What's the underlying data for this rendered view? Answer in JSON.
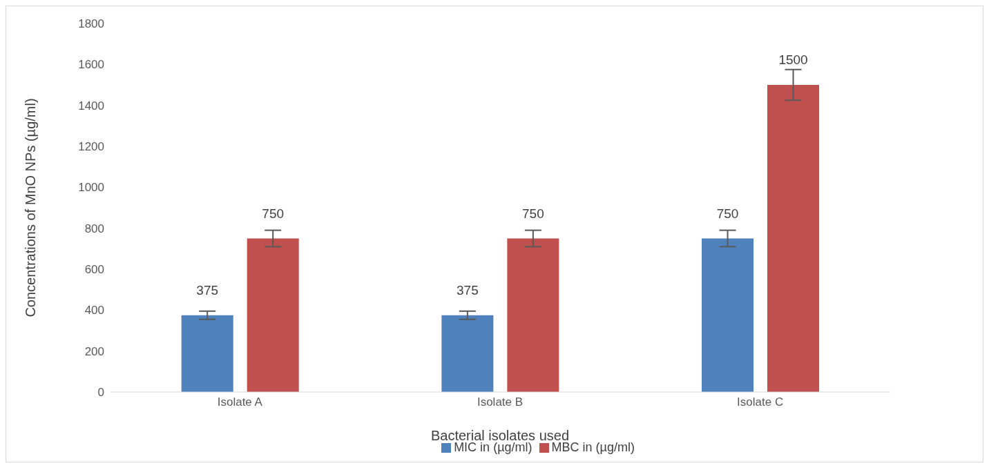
{
  "chart_data": {
    "type": "bar",
    "categories": [
      "Isolate A",
      "Isolate B",
      "Isolate C"
    ],
    "xlabel": "Bacterial isolates used",
    "ylabel": "Concentrations of MnO NPs (µg/ml)",
    "series": [
      {
        "name": "MIC in (µg/ml)",
        "color": "#4f81bd",
        "values": [
          375,
          375,
          750
        ],
        "errors": [
          20,
          20,
          40
        ]
      },
      {
        "name": "MBC in (µg/ml)",
        "color": "#c0504d",
        "values": [
          750,
          750,
          1500
        ],
        "errors": [
          40,
          40,
          75
        ]
      }
    ],
    "ylim": [
      0,
      1800
    ],
    "yticks": [
      0,
      200,
      400,
      600,
      800,
      1000,
      1200,
      1400,
      1600,
      1800
    ],
    "grid": false,
    "legend": "bottom",
    "data_labels": true
  }
}
